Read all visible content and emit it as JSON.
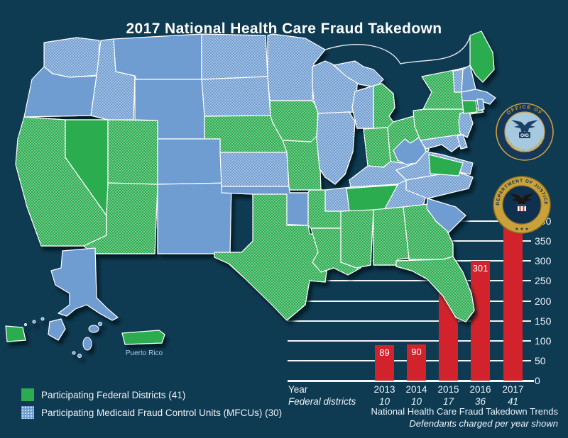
{
  "title": "2017 National Health Care Fraud Takedown",
  "colors": {
    "background": "#0e3a52",
    "state_blue": "#6f9dd1",
    "state_green": "#2cac50",
    "bar_red": "#d2232d",
    "gold": "#c9a13b",
    "gridline": "#ffffff"
  },
  "legend": {
    "federal_label": "Participating Federal Districts (41)",
    "mfcu_label": "Participating Medicaid Fraud Control Units (MFCUs) (30)"
  },
  "map": {
    "puerto_rico_label": "Puerto Rico",
    "states": [
      {
        "id": "WA",
        "name": "Washington",
        "status": "mfcu"
      },
      {
        "id": "OR",
        "name": "Oregon",
        "status": "none"
      },
      {
        "id": "CA",
        "name": "California",
        "status": "both"
      },
      {
        "id": "NV",
        "name": "Nevada",
        "status": "federal"
      },
      {
        "id": "ID",
        "name": "Idaho",
        "status": "mfcu"
      },
      {
        "id": "MT",
        "name": "Montana",
        "status": "none"
      },
      {
        "id": "WY",
        "name": "Wyoming",
        "status": "none"
      },
      {
        "id": "UT",
        "name": "Utah",
        "status": "both"
      },
      {
        "id": "CO",
        "name": "Colorado",
        "status": "none"
      },
      {
        "id": "AZ",
        "name": "Arizona",
        "status": "both"
      },
      {
        "id": "NM",
        "name": "New Mexico",
        "status": "none"
      },
      {
        "id": "ND",
        "name": "North Dakota",
        "status": "mfcu"
      },
      {
        "id": "SD",
        "name": "South Dakota",
        "status": "mfcu"
      },
      {
        "id": "NE",
        "name": "Nebraska",
        "status": "both"
      },
      {
        "id": "KS",
        "name": "Kansas",
        "status": "mfcu"
      },
      {
        "id": "OK",
        "name": "Oklahoma",
        "status": "none"
      },
      {
        "id": "TX",
        "name": "Texas",
        "status": "both"
      },
      {
        "id": "MN",
        "name": "Minnesota",
        "status": "mfcu"
      },
      {
        "id": "IA",
        "name": "Iowa",
        "status": "both"
      },
      {
        "id": "MO",
        "name": "Missouri",
        "status": "both"
      },
      {
        "id": "AR",
        "name": "Arkansas",
        "status": "both"
      },
      {
        "id": "LA",
        "name": "Louisiana",
        "status": "both"
      },
      {
        "id": "WI",
        "name": "Wisconsin",
        "status": "mfcu"
      },
      {
        "id": "IL",
        "name": "Illinois",
        "status": "mfcu"
      },
      {
        "id": "MI-UP",
        "name": "Michigan (Upper Peninsula)",
        "status": "mfcu"
      },
      {
        "id": "MI-W",
        "name": "Michigan (western districts)",
        "status": "mfcu"
      },
      {
        "id": "MI-E",
        "name": "Michigan (eastern district)",
        "status": "both"
      },
      {
        "id": "IN",
        "name": "Indiana",
        "status": "both"
      },
      {
        "id": "OH",
        "name": "Ohio",
        "status": "both"
      },
      {
        "id": "KY",
        "name": "Kentucky",
        "status": "mfcu"
      },
      {
        "id": "TN",
        "name": "Tennessee",
        "status": "mfcu"
      },
      {
        "id": "TN-M",
        "name": "Tennessee (Middle District)",
        "status": "federal"
      },
      {
        "id": "MS",
        "name": "Mississippi",
        "status": "both"
      },
      {
        "id": "AL",
        "name": "Alabama",
        "status": "both"
      },
      {
        "id": "GA",
        "name": "Georgia",
        "status": "both"
      },
      {
        "id": "FL",
        "name": "Florida",
        "status": "both"
      },
      {
        "id": "SC",
        "name": "South Carolina",
        "status": "none"
      },
      {
        "id": "NC",
        "name": "North Carolina",
        "status": "mfcu"
      },
      {
        "id": "VA",
        "name": "Virginia",
        "status": "mfcu"
      },
      {
        "id": "VA-E",
        "name": "Virginia (Eastern District)",
        "status": "federal"
      },
      {
        "id": "WV",
        "name": "West Virginia",
        "status": "none"
      },
      {
        "id": "PA",
        "name": "Pennsylvania",
        "status": "both"
      },
      {
        "id": "NY",
        "name": "New York",
        "status": "both"
      },
      {
        "id": "NY-LI",
        "name": "New York (Long Island)",
        "status": "federal"
      },
      {
        "id": "NJ",
        "name": "New Jersey",
        "status": "mfcu"
      },
      {
        "id": "DE",
        "name": "Delaware",
        "status": "mfcu"
      },
      {
        "id": "MD",
        "name": "Maryland",
        "status": "mfcu"
      },
      {
        "id": "VT",
        "name": "Vermont",
        "status": "mfcu"
      },
      {
        "id": "NH",
        "name": "New Hampshire",
        "status": "none"
      },
      {
        "id": "ME",
        "name": "Maine",
        "status": "federal"
      },
      {
        "id": "MA",
        "name": "Massachusetts",
        "status": "none"
      },
      {
        "id": "CT",
        "name": "Connecticut",
        "status": "federal"
      },
      {
        "id": "RI",
        "name": "Rhode Island",
        "status": "none"
      },
      {
        "id": "AK",
        "name": "Alaska",
        "status": "none"
      },
      {
        "id": "HI",
        "name": "Hawaii",
        "status": "none"
      },
      {
        "id": "PR",
        "name": "Puerto Rico",
        "status": "federal"
      },
      {
        "id": "TERR-B",
        "name": "Island territory",
        "status": "none"
      },
      {
        "id": "TERR-G",
        "name": "Island territory",
        "status": "federal"
      }
    ]
  },
  "seals": {
    "oig": {
      "ring_top": "OFFICE OF",
      "ring_bottom": "INSPECTOR GENERAL",
      "monogram": "OIG"
    },
    "doj": {
      "ring_top": "DEPARTMENT OF JUSTICE",
      "stars": "★ ★ ★"
    }
  },
  "chart_data": {
    "type": "bar",
    "categories": [
      "2013",
      "2014",
      "2015",
      "2016",
      "2017"
    ],
    "values": [
      89,
      90,
      243,
      301,
      412
    ],
    "federal_districts": [
      10,
      10,
      17,
      36,
      41
    ],
    "row_labels": {
      "year": "Year",
      "districts": "Federal districts"
    },
    "ylim": [
      0,
      400
    ],
    "yticks": [
      0,
      50,
      100,
      150,
      200,
      250,
      300,
      350,
      400
    ],
    "grid": true,
    "legend_position": "none",
    "bar_color": "#d2232d",
    "captions": {
      "line1": "National Health Care Fraud Takedown Trends",
      "line2": "Defendants charged per year shown"
    }
  }
}
